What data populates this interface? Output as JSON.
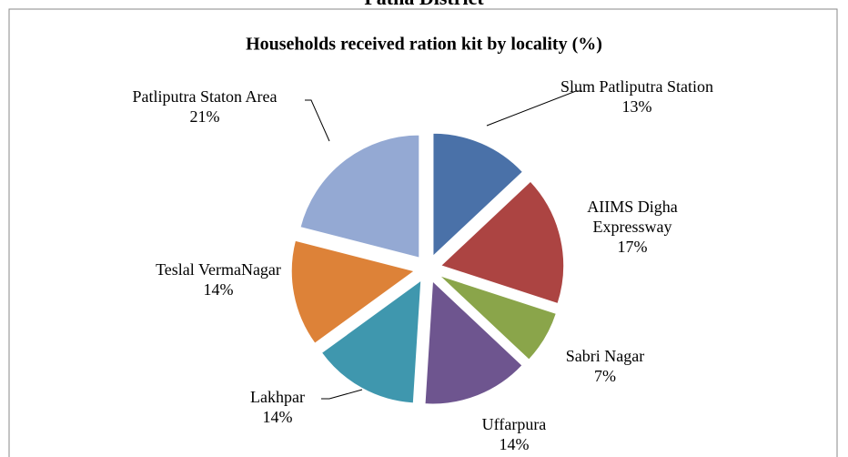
{
  "header": "Patna District",
  "chart_data": {
    "type": "pie",
    "title": "Households received ration kit by locality (%)",
    "categories": [
      "Slum Patliputra Station",
      "AIIMS Digha Expressway",
      "Sabri Nagar",
      "Uffarpura",
      "Lakhpar",
      "Teslal VermaNagar",
      "Patliputra Staton Area"
    ],
    "values": [
      13,
      17,
      7,
      14,
      14,
      14,
      21
    ],
    "value_labels": [
      "13%",
      "17%",
      "7%",
      "14%",
      "14%",
      "14%",
      "21%"
    ],
    "colors": [
      "#4a71a8",
      "#ac4442",
      "#8aa54a",
      "#6e558f",
      "#3f97ae",
      "#dd8238",
      "#94a9d3"
    ]
  }
}
